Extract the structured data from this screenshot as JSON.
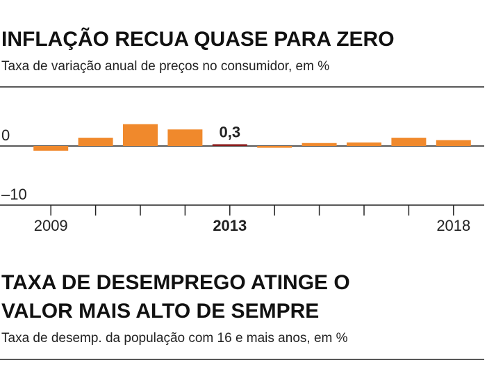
{
  "chart_data": [
    {
      "type": "bar",
      "title": "INFLAÇÃO RECUA QUASE PARA ZERO",
      "subtitle": "Taxa de variação anual de preços no consumidor, em %",
      "categories": [
        "2009",
        null,
        null,
        null,
        "2013",
        null,
        null,
        null,
        null,
        "2018"
      ],
      "values": [
        -0.8,
        1.4,
        3.7,
        2.8,
        0.3,
        -0.3,
        0.5,
        0.6,
        1.4,
        1.0
      ],
      "value_labels": [
        null,
        null,
        null,
        null,
        "0,3",
        null,
        null,
        null,
        null,
        null
      ],
      "colors": [
        "#f0892c",
        "#f0892c",
        "#f0892c",
        "#f0892c",
        "#8b1c1c",
        "#f0892c",
        "#f0892c",
        "#f0892c",
        "#f0892c",
        "#f0892c"
      ],
      "ylim": [
        -10,
        10
      ],
      "yticks": [
        0,
        {
          "value": -10,
          "label": "–10"
        }
      ],
      "grid": true
    },
    {
      "title": [
        "TAXA DE DESEMPREGO ATINGE O",
        "VALOR MAIS ALTO DE SEMPRE"
      ],
      "subtitle": "Taxa de desemp. da população com 16 e mais anos, em %"
    }
  ]
}
